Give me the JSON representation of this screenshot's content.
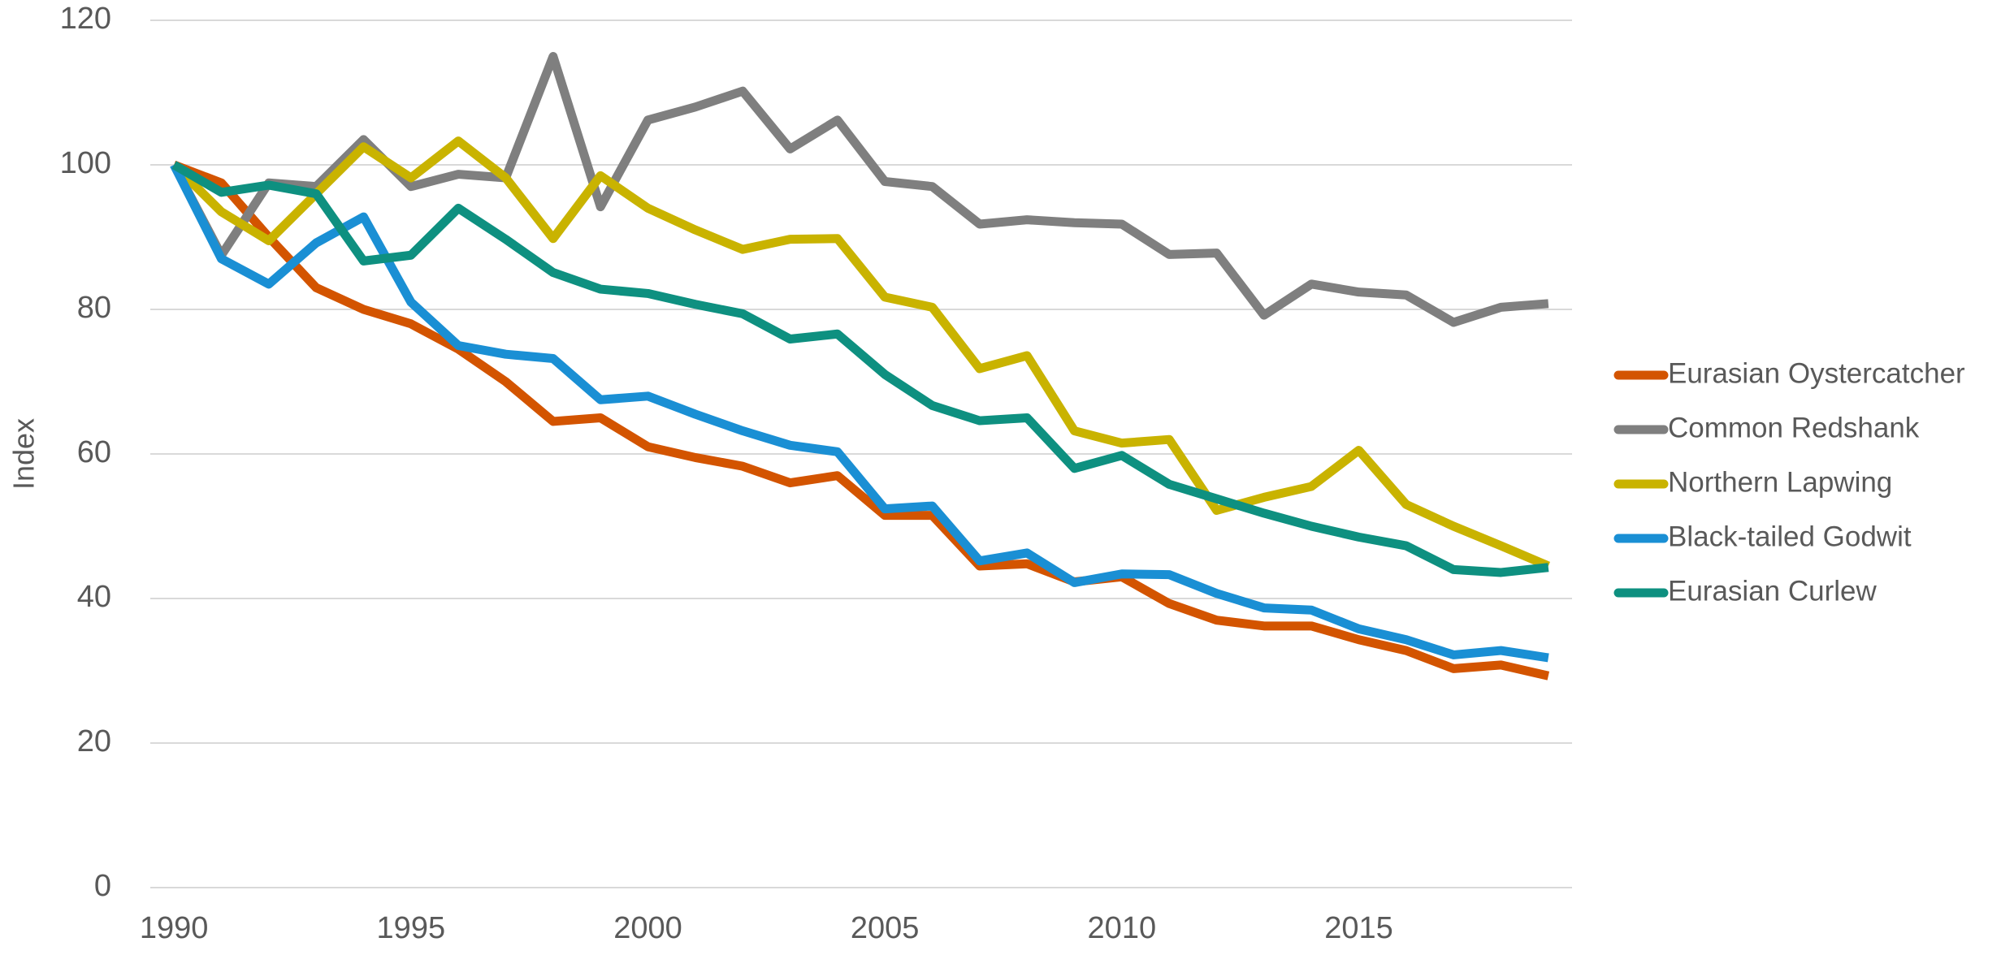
{
  "chart_data": {
    "type": "line",
    "y_label": "Index",
    "x": [
      1990,
      1991,
      1992,
      1993,
      1994,
      1995,
      1996,
      1997,
      1998,
      1999,
      2000,
      2001,
      2002,
      2003,
      2004,
      2005,
      2006,
      2007,
      2008,
      2009,
      2010,
      2011,
      2012,
      2013,
      2014,
      2015,
      2016,
      2017,
      2018,
      2019
    ],
    "xlim": [
      1989.5,
      2019.5
    ],
    "xticks": [
      1990,
      1995,
      2000,
      2005,
      2010,
      2015
    ],
    "ylim": [
      0,
      120
    ],
    "yticks": [
      0,
      20,
      40,
      60,
      80,
      100,
      120
    ],
    "grid": true,
    "legend": "right",
    "series": [
      {
        "name": "Eurasian Oystercatcher",
        "color": "#d35400",
        "values": [
          100,
          97.5,
          90,
          83,
          80,
          78,
          74.5,
          70,
          64.5,
          65,
          61,
          59.5,
          58.3,
          56,
          57,
          51.5,
          51.5,
          44.5,
          44.8,
          42.3,
          43,
          39.3,
          37,
          36.2,
          36.2,
          34.3,
          32.8,
          30.3,
          30.8,
          29.3
        ]
      },
      {
        "name": "Common Redshank",
        "color": "#7f7f7f",
        "values": [
          100,
          87.5,
          97.5,
          97,
          103.5,
          97,
          98.7,
          98.2,
          115,
          94.2,
          106.2,
          108,
          110.2,
          102.2,
          106.2,
          97.7,
          97,
          91.8,
          92.4,
          92,
          91.8,
          87.6,
          87.8,
          79.2,
          83.5,
          82.4,
          82,
          78.2,
          80.3,
          80.8
        ]
      },
      {
        "name": "Northern Lapwing",
        "color": "#c9b300",
        "values": [
          100,
          93.5,
          89.5,
          96,
          102.5,
          98.2,
          103.3,
          98.2,
          89.8,
          98.5,
          94,
          91,
          88.3,
          89.7,
          89.8,
          81.7,
          80.3,
          71.8,
          73.6,
          63.2,
          61.5,
          62,
          52.2,
          54,
          55.5,
          60.5,
          53,
          50,
          47.3,
          44.5
        ]
      },
      {
        "name": "Black-tailed Godwit",
        "color": "#1a8fd4",
        "values": [
          100,
          87,
          83.5,
          89.2,
          92.8,
          81,
          75,
          73.8,
          73.2,
          67.5,
          68,
          65.5,
          63.2,
          61.2,
          60.3,
          52.4,
          52.8,
          45.2,
          46.3,
          42.2,
          43.4,
          43.3,
          40.7,
          38.7,
          38.4,
          35.8,
          34.3,
          32.2,
          32.8,
          31.8
        ]
      },
      {
        "name": "Eurasian Curlew",
        "color": "#0e9080",
        "values": [
          100,
          96.2,
          97.2,
          96,
          86.7,
          87.5,
          94,
          89.7,
          85.1,
          82.8,
          82.2,
          80.7,
          79.4,
          75.9,
          76.6,
          71,
          66.7,
          64.6,
          65,
          58,
          59.8,
          55.8,
          53.8,
          51.8,
          50,
          48.5,
          47.3,
          44,
          43.6,
          44.3
        ]
      }
    ]
  }
}
